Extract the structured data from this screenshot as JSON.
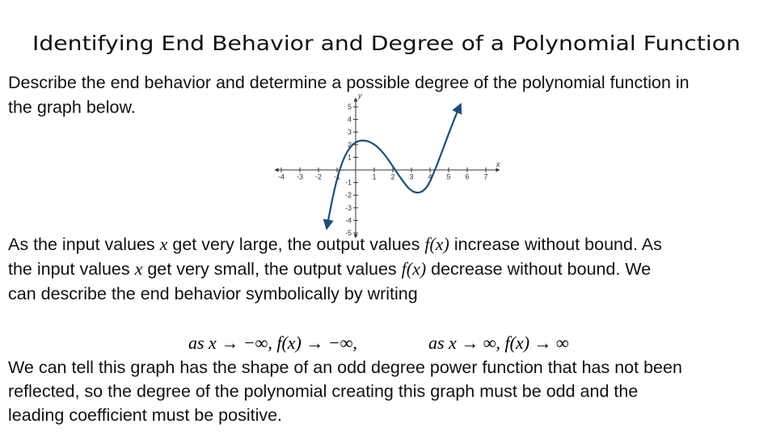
{
  "title": "Identifying End Behavior and Degree of a Polynomial Function",
  "intro": [
    "Describe the end behavior and determine a possible degree of the polynomial function in",
    "the graph below."
  ],
  "graph": {
    "x_label": "x",
    "y_label": "y",
    "x_ticks": [
      "-4",
      "-3",
      "-2",
      "-1",
      "1",
      "2",
      "3",
      "4",
      "5",
      "6",
      "7"
    ],
    "y_ticks": [
      "5",
      "4",
      "3",
      "2",
      "1",
      "-1",
      "-2",
      "-3",
      "-4",
      "-5"
    ]
  },
  "explanation": [
    [
      {
        "text": "As the input values "
      },
      {
        "math": "x"
      },
      {
        "text": " get very large, the output values "
      },
      {
        "math": "f(x)"
      },
      {
        "text": " increase without bound. As"
      }
    ],
    [
      {
        "text": "the input values "
      },
      {
        "math": "x"
      },
      {
        "text": " get very small, the output values "
      },
      {
        "math": "f(x)"
      },
      {
        "text": " decrease without bound. We"
      }
    ],
    [
      {
        "text": "can describe the end behavior symbolically by writing"
      }
    ]
  ],
  "end_behavior": [
    "as x → −∞, f(x) → −∞,",
    "as x → ∞, f(x) → ∞"
  ],
  "conclusion": [
    "We can tell this graph has the shape of an odd degree power function that has not been",
    "reflected, so the degree of the polynomial creating this graph must be odd and the",
    "leading coefficient must be positive."
  ]
}
